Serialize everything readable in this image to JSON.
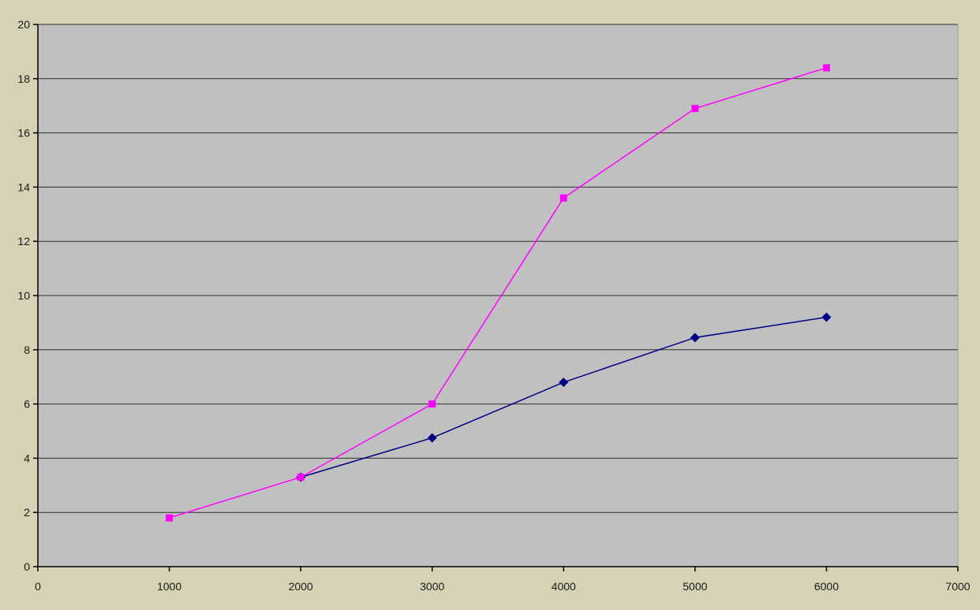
{
  "page": {
    "background_color": "#d5d2b5"
  },
  "chart_data": {
    "type": "line",
    "title": "",
    "xlabel": "",
    "ylabel": "",
    "xlim": [
      0,
      7000
    ],
    "ylim": [
      0,
      20
    ],
    "xticks": [
      0,
      1000,
      2000,
      3000,
      4000,
      5000,
      6000,
      7000
    ],
    "yticks": [
      0,
      2,
      4,
      6,
      8,
      10,
      12,
      14,
      16,
      18,
      20
    ],
    "grid": "horizontal",
    "legend_position": "none",
    "plot_background": "#c0c0c0",
    "gridline_color": "#2e2e2e",
    "axis_color": "#000000",
    "tick_label_color": "#1a1a1a",
    "plot_right_edge_color": "#8e8e82",
    "series": [
      {
        "name": "navy-diamond-series",
        "color": "#000080",
        "marker": "diamond",
        "points": [
          [
            2000,
            3.3
          ],
          [
            3000,
            4.75
          ],
          [
            4000,
            6.8
          ],
          [
            5000,
            8.45
          ],
          [
            6000,
            9.2
          ]
        ]
      },
      {
        "name": "magenta-square-series",
        "color": "#ff00ff",
        "marker": "square",
        "points": [
          [
            1000,
            1.8
          ],
          [
            2000,
            3.3
          ],
          [
            3000,
            6.0
          ],
          [
            4000,
            13.6
          ],
          [
            5000,
            16.9
          ],
          [
            6000,
            18.4
          ]
        ]
      }
    ]
  }
}
